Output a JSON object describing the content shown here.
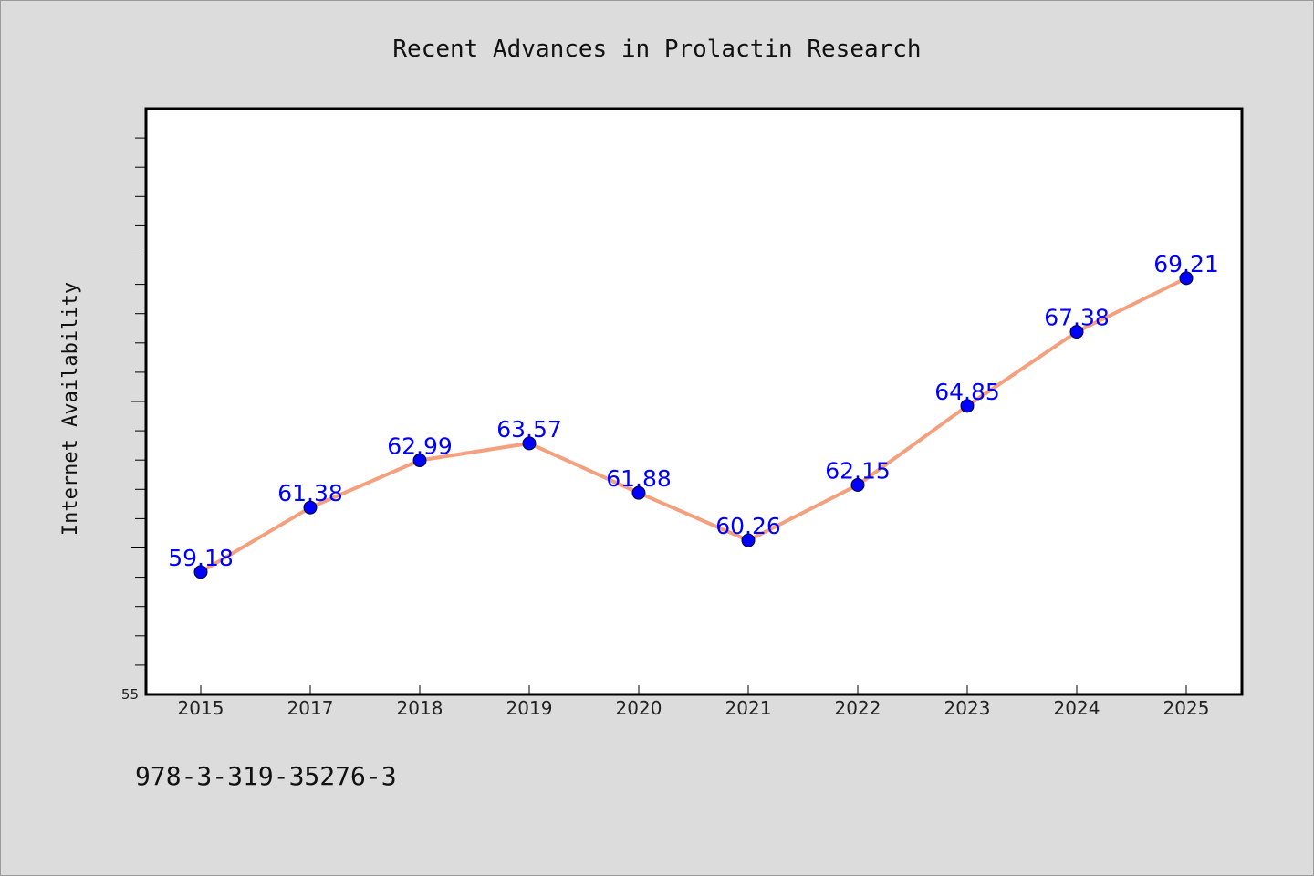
{
  "chart_data": {
    "type": "line",
    "title": "Recent Advances in Prolactin Research",
    "xlabel": "",
    "ylabel": "Internet Availability",
    "categories": [
      "2015",
      "2017",
      "2018",
      "2019",
      "2020",
      "2021",
      "2022",
      "2023",
      "2024",
      "2025"
    ],
    "values": [
      59.18,
      61.38,
      62.99,
      63.57,
      61.88,
      60.26,
      62.15,
      64.85,
      67.38,
      69.21
    ],
    "data_labels": [
      "59.18",
      "61.38",
      "62.99",
      "63.57",
      "61.88",
      "60.26",
      "62.15",
      "64.85",
      "67.38",
      "69.21"
    ],
    "ylim": [
      55,
      75
    ],
    "ytick_labels": [
      "55"
    ],
    "grid": false,
    "line_color": "#f4a07e",
    "marker_color": "#0000ff",
    "label_color": "#0000ff"
  },
  "footer": {
    "identifier": "978-3-319-35276-3"
  }
}
